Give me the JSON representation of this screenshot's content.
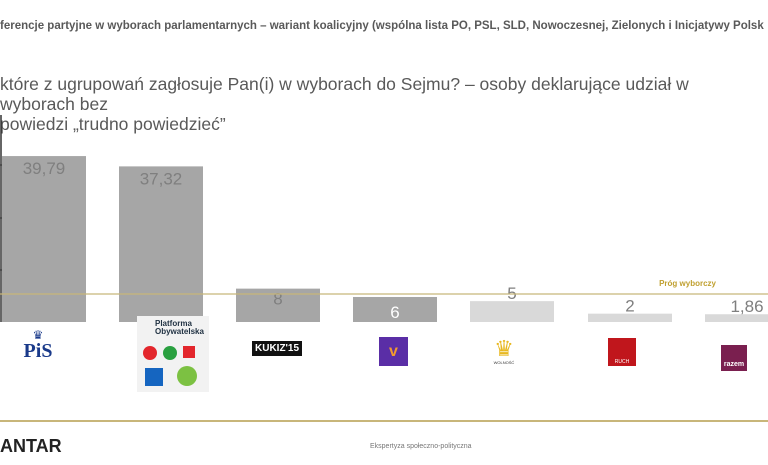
{
  "header": {
    "title": "ferencje partyjne w wyborach parlamentarnych – wariant koalicyjny (wspólna lista PO, PSL, SLD, Nowoczesnej, Zielonych i Inicjatywy Polsk"
  },
  "question": {
    "line1": "które z ugrupowań zagłosuje Pan(i) w wyborach do Sejmu? – osoby deklarujące udział w wyborach bez",
    "line2": "powiedzi „trudno powiedzieć”"
  },
  "chart_data": {
    "type": "bar",
    "categories": [
      "PiS",
      "Platforma Obywatelska / PSL / SLD / Nowoczesna / Zieloni / Inicjatywa Polska",
      "KUKIZ'15",
      "Wiosna",
      "Wolność",
      "Ruch Narodowy",
      "Razem"
    ],
    "values": [
      39.79,
      37.32,
      8,
      6,
      5,
      2,
      1.86
    ],
    "labels": [
      "39,79",
      "37,32",
      "8",
      "6",
      "5",
      "2",
      "1,86"
    ],
    "ylim": [
      0,
      50
    ],
    "threshold": {
      "label": "Próg wyborczy"
    },
    "colors": {
      "above": "#a6a6a6",
      "below": "#d9d9d9",
      "threshold": "#c8b67a",
      "threshold_label": "#c0a030"
    }
  },
  "logos": {
    "pis": "PiS",
    "po": "Platforma Obywatelska",
    "kukiz": "KUKIZ'15",
    "wolnosc": "WOLNOŚĆ",
    "ruch": "RUCH",
    "razem": "razem"
  },
  "footer": {
    "brand": "ANTAR",
    "tagline": "Ekspertyza społeczno-polityczna"
  }
}
